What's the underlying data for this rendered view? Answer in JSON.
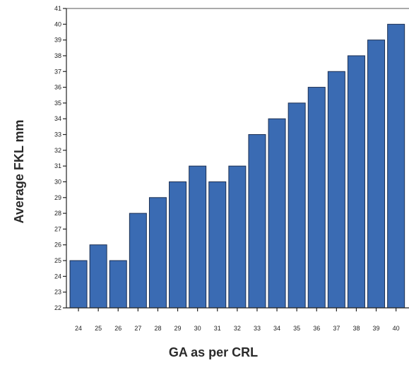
{
  "chart_data": {
    "type": "bar",
    "title": "",
    "xlabel": "GA as per CRL",
    "ylabel": "Average FKL mm",
    "categories": [
      "24",
      "25",
      "26",
      "27",
      "28",
      "29",
      "30",
      "31",
      "32",
      "33",
      "34",
      "35",
      "36",
      "37",
      "38",
      "39",
      "40"
    ],
    "values": [
      25,
      26,
      25,
      28,
      29,
      30,
      31,
      30,
      31,
      33,
      34,
      35,
      36,
      37,
      38,
      39,
      40
    ],
    "ylim": [
      22,
      41
    ],
    "yticks": [
      22,
      23,
      24,
      25,
      26,
      27,
      28,
      29,
      30,
      31,
      32,
      33,
      34,
      35,
      36,
      37,
      38,
      39,
      40,
      41
    ],
    "grid": false,
    "colors": {
      "bar_fill": "#3a6bb3",
      "bar_stroke": "#1b2f52"
    }
  }
}
